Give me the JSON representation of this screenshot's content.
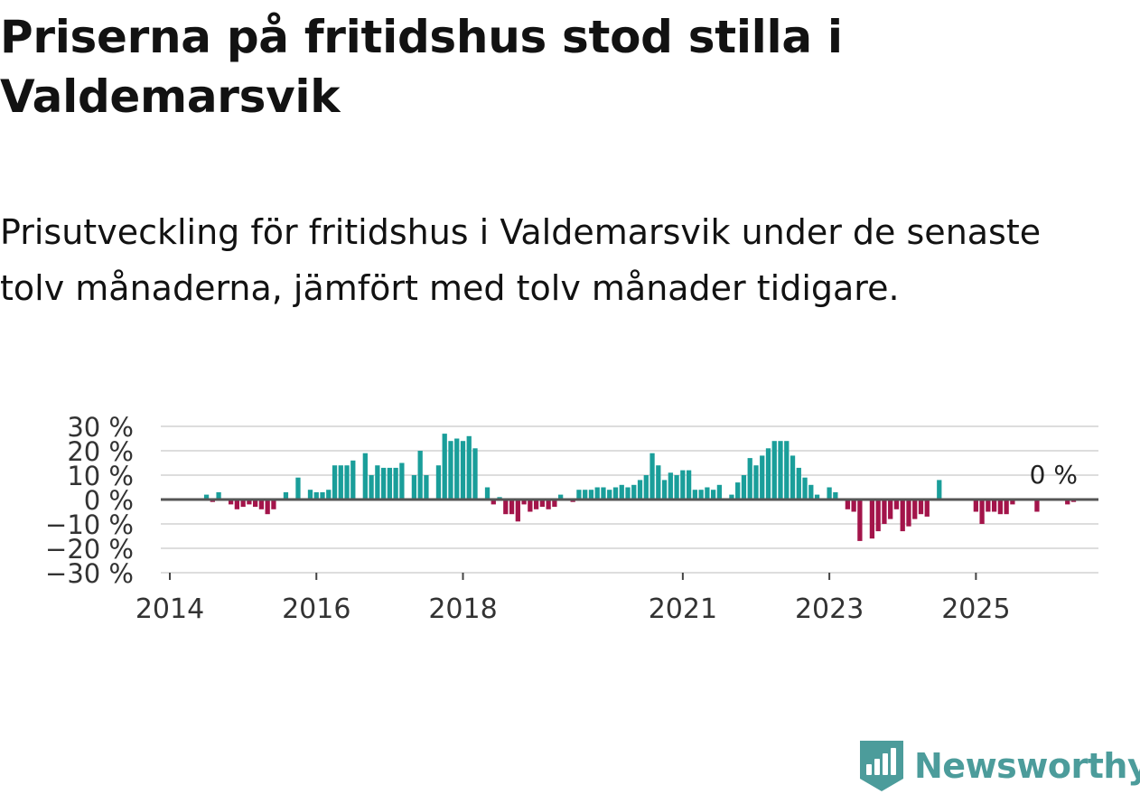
{
  "header": {
    "title": "Priserna på fritidshus stod stilla i Valdemarsvik",
    "subtitle": "Prisutveckling för fritidshus i Valdemarsvik under de senaste tolv månaderna, jämfört med tolv månader tidigare."
  },
  "footer": {
    "brand": "Newsworthy"
  },
  "colors": {
    "positive": "#1a9e9a",
    "negative": "#a3144a",
    "zero_line": "#555555",
    "grid": "#dddddd",
    "brand": "#4c9c9b"
  },
  "chart_data": {
    "type": "bar",
    "title": "Priserna på fritidshus stod stilla i Valdemarsvik",
    "xlabel": "",
    "ylabel": "",
    "ylim": [
      -30,
      30
    ],
    "yticks": [
      30,
      20,
      10,
      0,
      -10,
      -20,
      -30
    ],
    "ytick_labels": [
      "30 %",
      "20 %",
      "10 %",
      "0 %",
      "−10 %",
      "−20 %",
      "−30 %"
    ],
    "xlim": [
      2014.0,
      2026.45
    ],
    "xticks": [
      2014,
      2016,
      2018,
      2021,
      2023,
      2025
    ],
    "xtick_labels": [
      "2014",
      "2016",
      "2018",
      "2021",
      "2023",
      "2025"
    ],
    "last_value_label": "0 %",
    "series": [
      {
        "name": "Prisutveckling",
        "start_year": 2014.5,
        "step_years": 0.08333,
        "values": [
          2,
          -1,
          3,
          0,
          -2,
          -4,
          -3,
          -2,
          -3,
          -4,
          -6,
          -4,
          0,
          3,
          0,
          9,
          0,
          4,
          3,
          3,
          4,
          14,
          14,
          14,
          16,
          0,
          19,
          10,
          14,
          13,
          13,
          13,
          15,
          0,
          10,
          20,
          10,
          0,
          14,
          27,
          24,
          25,
          24,
          26,
          21,
          0,
          5,
          -2,
          1,
          -6,
          -6,
          -9,
          -2,
          -5,
          -4,
          -3,
          -4,
          -3,
          2,
          0,
          -1,
          4,
          4,
          4,
          5,
          5,
          4,
          5,
          6,
          5,
          6,
          8,
          10,
          19,
          14,
          8,
          11,
          10,
          12,
          12,
          4,
          4,
          5,
          4,
          6,
          0,
          2,
          7,
          10,
          17,
          14,
          18,
          21,
          24,
          24,
          24,
          18,
          13,
          9,
          6,
          2,
          0,
          5,
          3,
          0,
          -4,
          -5,
          -17,
          0,
          -16,
          -13,
          -10,
          -8,
          -4,
          -13,
          -11,
          -8,
          -6,
          -7,
          0,
          8,
          0,
          0,
          0,
          0,
          0,
          -5,
          -10,
          -5,
          -5,
          -6,
          -6,
          -2,
          0,
          0,
          0,
          -5,
          0,
          0,
          0,
          0,
          -2,
          -1,
          0,
          0,
          0
        ]
      }
    ]
  }
}
